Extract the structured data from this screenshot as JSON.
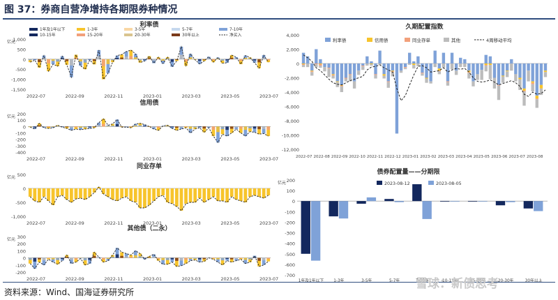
{
  "figure": {
    "title": "图 37：券商自营净增持各期限券种情况",
    "source": "资料来源：Wind、国海证券研究所",
    "watermark": "雪球：新债思考"
  },
  "colors": {
    "navy": "#13285e",
    "yellow": "#f7c42c",
    "blue": "#7fa2d8",
    "gray": "#bcbcbc",
    "salmon": "#f2a07b",
    "brown": "#7b3a1a",
    "lightblue": "#c5d8ee",
    "peach": "#f9d7a4",
    "tan": "#d9c48f",
    "dash": "#222222"
  },
  "chart_data": [
    {
      "id": "p1",
      "type": "bar",
      "title": "利率债",
      "unit": "亿元",
      "ylim": [
        -1500,
        1000
      ],
      "yticks": [
        1000,
        500,
        0,
        -500,
        -1000,
        -1500
      ],
      "xticks": [
        "2022-07",
        "2022-09",
        "2022-11",
        "2023-01",
        "2023-03",
        "2023-05",
        "2023-07"
      ],
      "legend_position": "top",
      "legend": [
        {
          "name": "1年及1年以下",
          "color": "#13285e"
        },
        {
          "name": "1-3年",
          "color": "#f7c42c"
        },
        {
          "name": "3-5年",
          "color": "#f9d7a4"
        },
        {
          "name": "5-7年",
          "color": "#c5d8ee"
        },
        {
          "name": "7-10年",
          "color": "#7fa2d8"
        },
        {
          "name": "10-15年",
          "color": "#13285e"
        },
        {
          "name": "15-20年",
          "color": "#f2a07b"
        },
        {
          "name": "20-30年",
          "color": "#d9c48f"
        },
        {
          "name": "30年以上",
          "color": "#7b3a1a"
        },
        {
          "name": "净买入",
          "color": "#222222",
          "style": "dash"
        }
      ],
      "values": [
        -150,
        -50,
        -420,
        180,
        -600,
        -250,
        -350,
        150,
        -280,
        -900,
        220,
        -330,
        -500,
        -50,
        -260,
        450,
        -1000,
        -700,
        -150,
        180,
        230,
        380,
        450,
        260,
        -170,
        -90,
        150,
        -200,
        100,
        -220,
        100,
        -380,
        -90,
        620,
        -330,
        260,
        -30,
        -240,
        -90,
        120,
        -150,
        80,
        -200,
        -180,
        200,
        100,
        -250,
        180,
        80,
        -180,
        -450,
        200,
        -150
      ]
    },
    {
      "id": "p2",
      "type": "bar",
      "title": "信用债",
      "unit": "亿元",
      "ylim": [
        -400,
        200
      ],
      "yticks": [
        200,
        100,
        0,
        -100,
        -200,
        -300,
        -400
      ],
      "xticks": [
        "2022-07",
        "2022-09",
        "2022-11",
        "2023-01",
        "2023-03",
        "2023-05",
        "2023-07"
      ],
      "values": [
        -10,
        -40,
        50,
        -20,
        -30,
        -20,
        20,
        -10,
        -30,
        -60,
        -40,
        -50,
        -40,
        -30,
        -20,
        60,
        120,
        20,
        40,
        110,
        -10,
        -10,
        -20,
        40,
        50,
        30,
        0,
        -40,
        -60,
        10,
        20,
        -30,
        -60,
        -40,
        -20,
        -100,
        -40,
        -20,
        -90,
        -20,
        -150,
        -250,
        -120,
        -150,
        -100,
        -40,
        -100,
        -150,
        -80,
        -90,
        -120,
        -110,
        -150
      ]
    },
    {
      "id": "p3",
      "type": "bar",
      "title": "同业存单",
      "unit": "亿元",
      "ylim": [
        -1000,
        500
      ],
      "yticks": [
        500,
        0,
        -500,
        -1000
      ],
      "xticks": [
        "2022-07",
        "2022-09",
        "2022-11",
        "2023-01",
        "2023-03",
        "2023-05",
        "2023-07"
      ],
      "values": [
        -300,
        -450,
        -500,
        -300,
        -450,
        -600,
        -300,
        -250,
        -400,
        -500,
        -380,
        -350,
        -400,
        -300,
        -150,
        50,
        -200,
        -300,
        -400,
        -450,
        -350,
        -300,
        -450,
        -500,
        -700,
        -700,
        -600,
        -450,
        -300,
        -250,
        -500,
        -550,
        -650,
        -800,
        -550,
        -500,
        -500,
        -350,
        -500,
        -400,
        -300,
        -450,
        -450,
        -500,
        -300,
        -400,
        -450,
        -500,
        -300,
        -250,
        -300,
        -350,
        -250
      ]
    },
    {
      "id": "p4",
      "type": "bar",
      "title": "其他债（二永）",
      "unit": "亿元",
      "ylim": [
        -200,
        300
      ],
      "yticks": [
        300,
        200,
        100,
        0,
        -100,
        -200
      ],
      "xticks": [
        "2022-07",
        "2022-09",
        "2022-11",
        "2023-01",
        "2023-03",
        "2023-05",
        "2023-07"
      ],
      "values": [
        -80,
        -150,
        -60,
        -100,
        -20,
        -60,
        -90,
        -40,
        40,
        -80,
        -60,
        -10,
        -100,
        -80,
        80,
        10,
        -60,
        -40,
        40,
        140,
        80,
        60,
        40,
        100,
        60,
        -20,
        20,
        50,
        -40,
        -90,
        -90,
        -60,
        -120,
        -110,
        -80,
        -40,
        -30,
        -60,
        -50,
        0,
        -20,
        -60,
        -100,
        -40,
        -60,
        -40,
        -20,
        -80,
        -60,
        30,
        -120,
        -100,
        -50
      ]
    },
    {
      "id": "p5",
      "type": "bar",
      "title": "久期配置指数",
      "ylim": [
        -12000,
        4000
      ],
      "yticks": [
        4000,
        2000,
        0,
        -2000,
        -4000,
        -6000,
        -8000,
        -10000,
        -12000
      ],
      "xticks": [
        "2022-07",
        "2022-08",
        "2022-09",
        "2022-10",
        "2022-11",
        "2022-12",
        "2023-01",
        "2023-02",
        "2023-03",
        "2023-04",
        "2023-05",
        "2023-06",
        "2023-07",
        "2023-08"
      ],
      "legend_position": "top",
      "legend": [
        {
          "name": "利率债",
          "color": "#7fa2d8"
        },
        {
          "name": "信用债",
          "color": "#f7c42c"
        },
        {
          "name": "同业存单",
          "color": "#f2a07b"
        },
        {
          "name": "其他",
          "color": "#bcbcbc"
        },
        {
          "name": "4周移动平均",
          "color": "#222222",
          "style": "dash"
        }
      ],
      "series": [
        {
          "name": "利率债",
          "values": [
            1500,
            1000,
            -1000,
            2000,
            600,
            -500,
            -600,
            -1500,
            -2500,
            -3000,
            -2000,
            -1500,
            -2500,
            -1000,
            -300,
            1000,
            300,
            -1500,
            1800,
            -1500,
            -2500,
            -1000,
            -9800,
            -1000,
            -500,
            1500,
            300,
            1000,
            -1300,
            -2000,
            -2500,
            1800,
            -700,
            1500,
            -2500,
            1500,
            -1000,
            800,
            600,
            -1000,
            -2500,
            -1500,
            -900,
            1200,
            1000,
            -2000,
            -3000,
            -1700,
            -1000,
            600,
            -1500,
            -2000,
            -3500,
            -1000,
            -2500,
            -4500,
            -3000,
            -1000
          ]
        },
        {
          "name": "信用债",
          "values": [
            -100,
            0,
            -100,
            0,
            -100,
            0,
            0,
            -100,
            -100,
            -100,
            0,
            0,
            0,
            0,
            0,
            0,
            -100,
            0,
            0,
            -200,
            0,
            -100,
            0,
            0,
            0,
            0,
            -200,
            0,
            0,
            -100,
            0,
            0,
            -300,
            0,
            0,
            0,
            0,
            0,
            0,
            -200,
            0,
            0,
            0,
            -200,
            -200,
            0,
            0,
            -100,
            -100,
            0,
            0,
            -200,
            -300,
            0,
            -200,
            -400,
            -500,
            -200
          ]
        },
        {
          "name": "同业存单",
          "values": [
            -100,
            0,
            -100,
            -100,
            -200,
            0,
            -100,
            -100,
            0,
            -100,
            -100,
            -100,
            0,
            0,
            -100,
            0,
            0,
            -100,
            0,
            0,
            -100,
            -100,
            0,
            0,
            -100,
            0,
            0,
            0,
            -100,
            0,
            0,
            0,
            -100,
            0,
            -100,
            0,
            0,
            0,
            0,
            -100,
            0,
            0,
            0,
            -100,
            0,
            0,
            -100,
            0,
            0,
            0,
            0,
            0,
            -100,
            0,
            -200,
            -100,
            0,
            0
          ]
        },
        {
          "name": "其他",
          "values": [
            -300,
            -500,
            -500,
            -400,
            -300,
            -600,
            -1200,
            -400,
            -700,
            -800,
            -400,
            -900,
            -1000,
            -600,
            -500,
            -300,
            -200,
            -500,
            -200,
            -400,
            -800,
            -600,
            0,
            -300,
            -200,
            -200,
            -500,
            -400,
            -300,
            -600,
            -300,
            -500,
            -400,
            -600,
            -500,
            -800,
            -600,
            -500,
            -500,
            -800,
            -700,
            -800,
            -1400,
            -800,
            -2000,
            -1500,
            -2000,
            -900,
            -800,
            -1000,
            -1000,
            -1500,
            -2000,
            -1500,
            -1000,
            -1200,
            -900,
            -700
          ]
        }
      ],
      "moving_average": [
        1200,
        800,
        300,
        -600,
        -1000,
        -1600,
        -2200,
        -2700,
        -2900,
        -3000,
        -2700,
        -2400,
        -2200,
        -2000,
        -1800,
        -900,
        -500,
        -400,
        -200,
        -600,
        -900,
        -1200,
        -3500,
        -5200,
        -4500,
        -3000,
        -1600,
        -400,
        -300,
        -600,
        -1200,
        -1100,
        -1000,
        -600,
        -1200,
        -900,
        -700,
        -800,
        -700,
        -1200,
        -2000,
        -2500,
        -2600,
        -2500,
        -2300,
        -2600,
        -3000,
        -2800,
        -2600,
        -2400,
        -2700,
        -3200,
        -4300,
        -4600,
        -4000,
        -4300,
        -4200,
        -3700
      ]
    },
    {
      "id": "p6",
      "type": "bar",
      "title": "债券配置量——分期限",
      "unit": "亿元",
      "ylim": [
        -700,
        200
      ],
      "yticks": [
        200,
        100,
        0,
        -100,
        -200,
        -300,
        -400,
        -500,
        -600,
        -700
      ],
      "categories": [
        "1年及1年以下",
        "1-3年",
        "3-5年",
        "5-7年",
        "7-10年",
        "10-15年",
        "15-20年",
        "20-30年",
        "30年以上"
      ],
      "legend_position": "top",
      "series": [
        {
          "name": "2023-08-12",
          "color": "#13285e",
          "values": [
            -500,
            -145,
            -25,
            20,
            160,
            -5,
            -5,
            -40,
            -70
          ]
        },
        {
          "name": "2023-08-05",
          "color": "#7fa2d8",
          "values": [
            -565,
            -165,
            35,
            -10,
            -170,
            -5,
            -5,
            -10,
            -95
          ]
        }
      ]
    }
  ]
}
